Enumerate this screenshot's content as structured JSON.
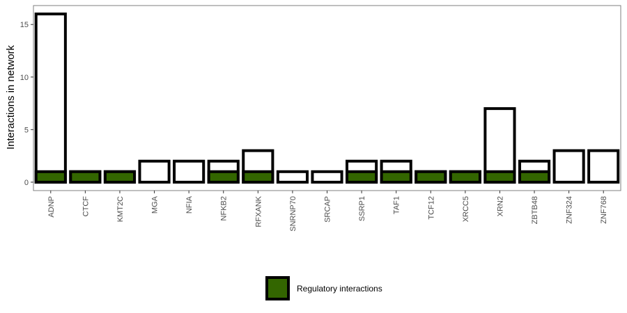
{
  "chart_data": {
    "type": "bar",
    "ylabel": "Interactions in network",
    "xlabel": "",
    "ylim": [
      -0.8,
      16.8
    ],
    "yticks": [
      0,
      5,
      10,
      15
    ],
    "grid": false,
    "legend_position": "bottom",
    "categories": [
      "ADNP",
      "CTCF",
      "KMT2C",
      "MGA",
      "NFIA",
      "NFKB2",
      "RFXANK",
      "SNRNP70",
      "SRCAP",
      "SSRP1",
      "TAF1",
      "TCF12",
      "XRCC5",
      "XRN2",
      "ZBTB48",
      "ZNF324",
      "ZNF768"
    ],
    "series": [
      {
        "key": "total",
        "values": [
          16,
          1,
          1,
          2,
          2,
          2,
          3,
          1,
          1,
          2,
          2,
          1,
          1,
          7,
          2,
          3,
          3
        ],
        "color": "#ffffff",
        "outline": "#000000"
      },
      {
        "key": "regulatory",
        "name": "Regulatory interactions",
        "values": [
          1,
          1,
          1,
          0,
          0,
          1,
          1,
          0,
          0,
          1,
          1,
          1,
          1,
          1,
          1,
          0,
          0
        ],
        "color": "#336600",
        "outline": "#000000"
      }
    ]
  }
}
